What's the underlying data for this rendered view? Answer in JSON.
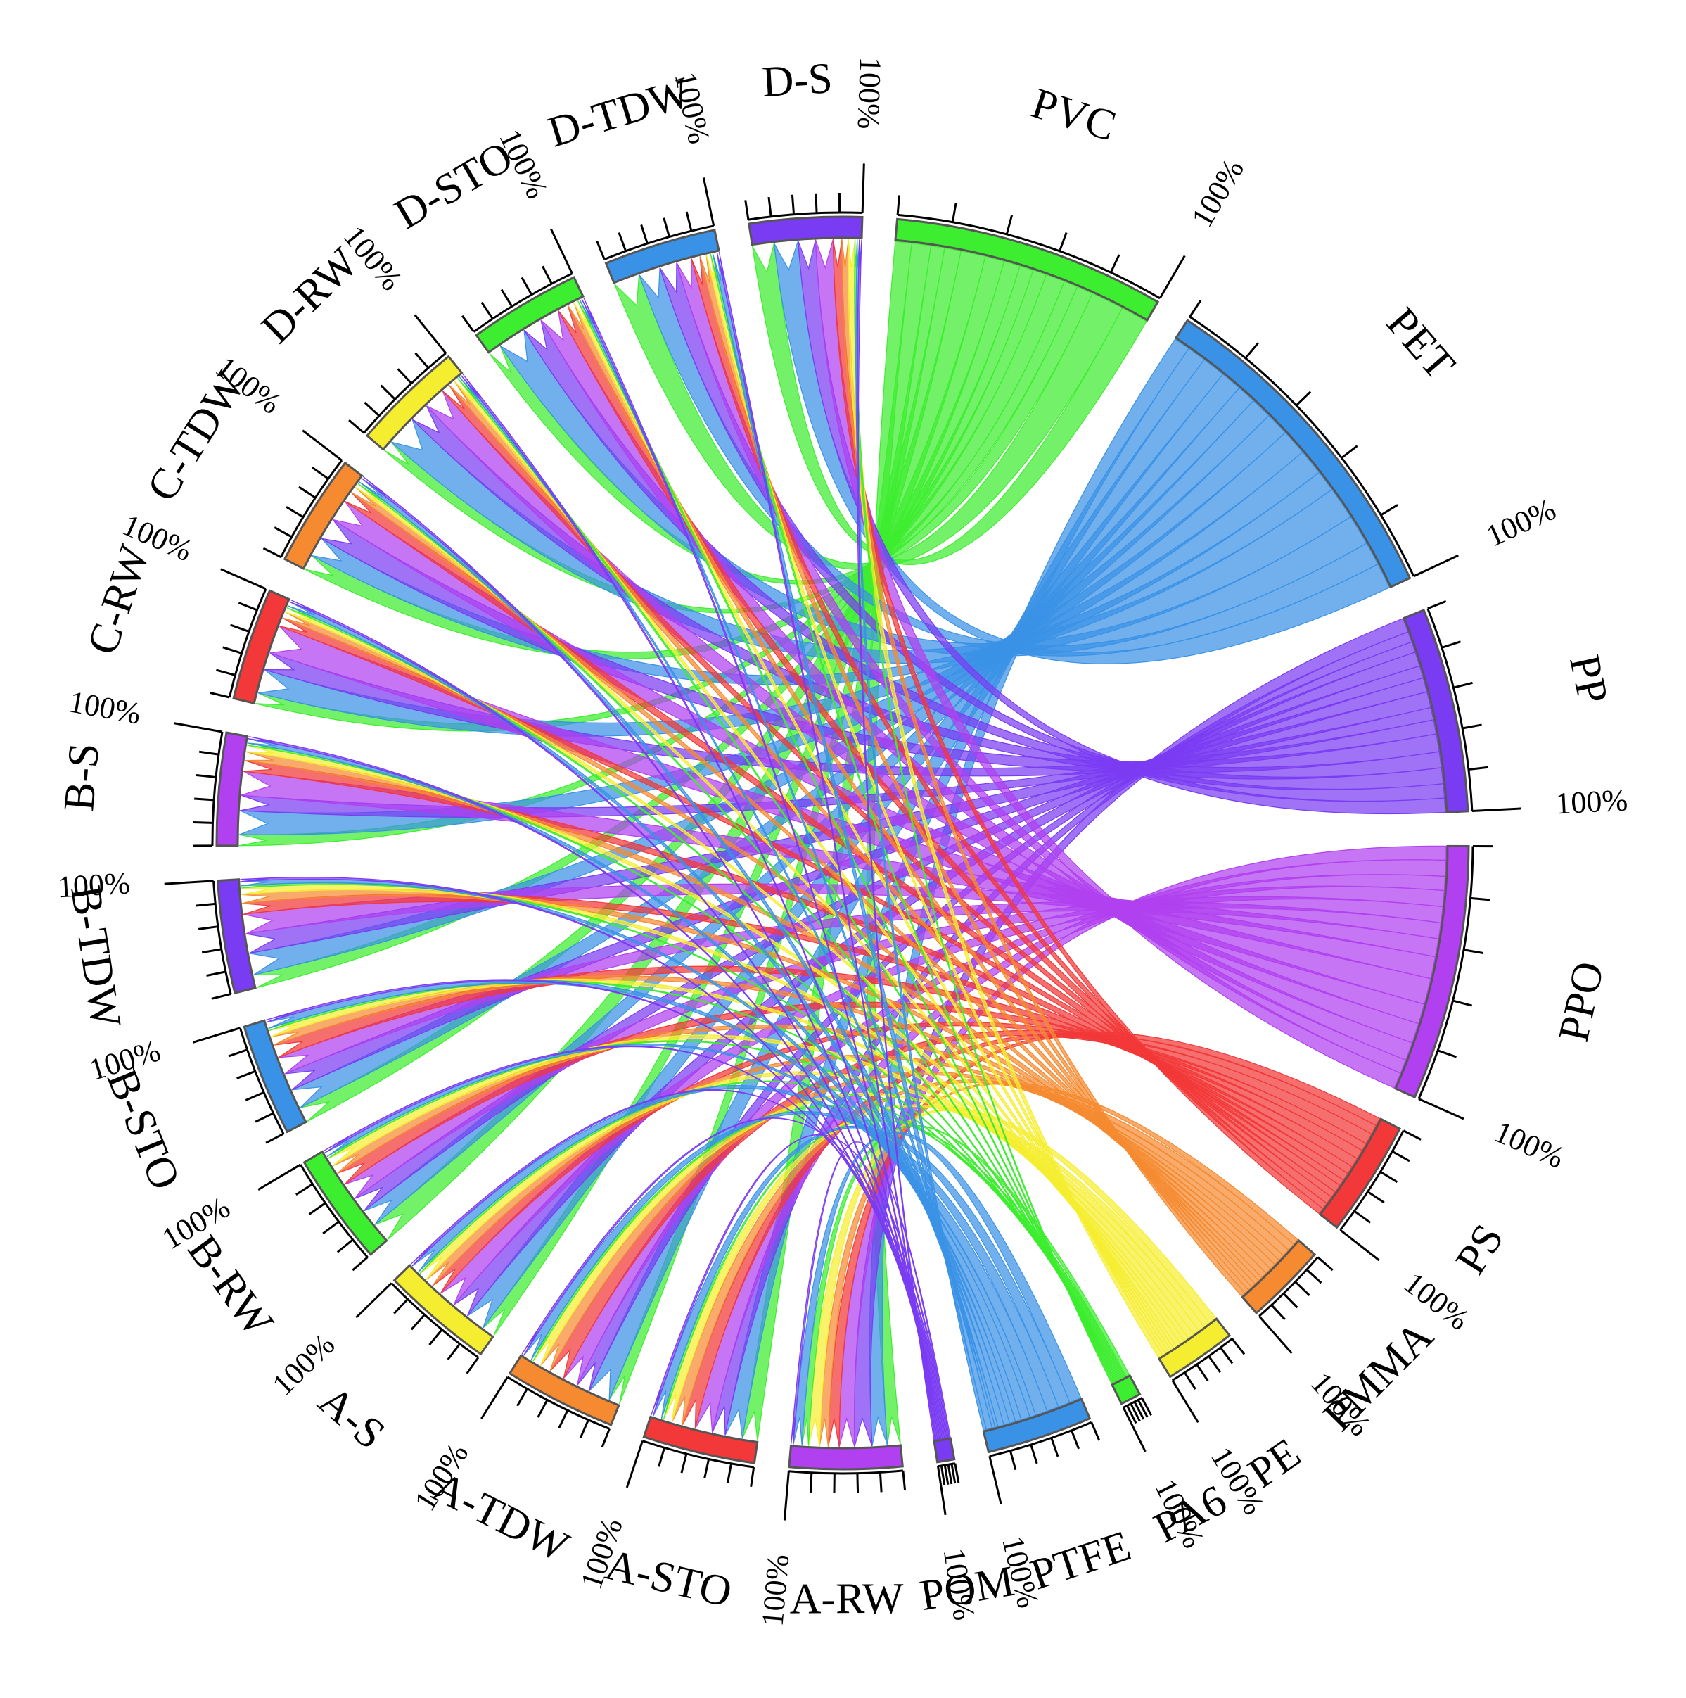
{
  "chart_data": {
    "type": "chord",
    "percent_label": "100%",
    "segments": [
      {
        "name": "PVC",
        "color": "#3ded2f",
        "value": 8.0
      },
      {
        "name": "PET",
        "color": "#3a92e6",
        "value": 10.0
      },
      {
        "name": "PP",
        "color": "#7a3cf2",
        "value": 6.0
      },
      {
        "name": "PPO",
        "color": "#b040f0",
        "value": 7.5
      },
      {
        "name": "PS",
        "color": "#f23838",
        "value": 3.4
      },
      {
        "name": "PMMA",
        "color": "#f58a30",
        "value": 2.4
      },
      {
        "name": "PE",
        "color": "#f5ee30",
        "value": 2.1
      },
      {
        "name": "PA6",
        "color": "#3ded2f",
        "value": 0.6
      },
      {
        "name": "PTFE",
        "color": "#3a92e6",
        "value": 3.1
      },
      {
        "name": "POM",
        "color": "#7a3cf2",
        "value": 0.5
      },
      {
        "name": "A-RW",
        "color": "#b040f0",
        "value": 3.3
      },
      {
        "name": "A-STO",
        "color": "#f23838",
        "value": 3.3
      },
      {
        "name": "A-TDW",
        "color": "#f58a30",
        "value": 3.3
      },
      {
        "name": "A-S",
        "color": "#f5ee30",
        "value": 3.3
      },
      {
        "name": "B-RW",
        "color": "#3ded2f",
        "value": 3.3
      },
      {
        "name": "B-STO",
        "color": "#3a92e6",
        "value": 3.3
      },
      {
        "name": "B-TDW",
        "color": "#7a3cf2",
        "value": 3.3
      },
      {
        "name": "B-S",
        "color": "#b040f0",
        "value": 3.3
      },
      {
        "name": "C-RW",
        "color": "#f23838",
        "value": 3.3
      },
      {
        "name": "C-TDW",
        "color": "#f58a30",
        "value": 3.3
      },
      {
        "name": "D-RW",
        "color": "#f5ee30",
        "value": 3.3
      },
      {
        "name": "D-STO",
        "color": "#3ded2f",
        "value": 3.3
      },
      {
        "name": "D-TDW",
        "color": "#3a92e6",
        "value": 3.3
      },
      {
        "name": "D-S",
        "color": "#7a3cf2",
        "value": 3.3
      }
    ],
    "polymers": [
      "PVC",
      "PET",
      "PP",
      "PPO",
      "PS",
      "PMMA",
      "PE",
      "PA6",
      "PTFE",
      "POM"
    ],
    "samples": [
      "A-RW",
      "A-STO",
      "A-TDW",
      "A-S",
      "B-RW",
      "B-STO",
      "B-TDW",
      "B-S",
      "C-RW",
      "C-TDW",
      "D-RW",
      "D-STO",
      "D-TDW",
      "D-S"
    ],
    "flows": {
      "A-RW": [
        12,
        14,
        16,
        14,
        10,
        8,
        10,
        6,
        8,
        2
      ],
      "A-STO": [
        14,
        16,
        12,
        16,
        12,
        10,
        8,
        2,
        8,
        2
      ],
      "A-TDW": [
        10,
        20,
        12,
        14,
        14,
        10,
        8,
        2,
        8,
        2
      ],
      "A-S": [
        12,
        18,
        16,
        16,
        10,
        8,
        8,
        2,
        8,
        2
      ],
      "B-RW": [
        18,
        16,
        14,
        16,
        12,
        8,
        8,
        2,
        4,
        2
      ],
      "B-STO": [
        14,
        18,
        16,
        16,
        12,
        8,
        6,
        2,
        6,
        2
      ],
      "B-TDW": [
        12,
        20,
        18,
        18,
        10,
        8,
        6,
        2,
        4,
        2
      ],
      "B-S": [
        10,
        22,
        14,
        22,
        10,
        8,
        6,
        2,
        4,
        2
      ],
      "C-RW": [
        10,
        22,
        16,
        26,
        8,
        6,
        4,
        2,
        4,
        2
      ],
      "C-TDW": [
        14,
        18,
        20,
        20,
        10,
        6,
        4,
        2,
        4,
        2
      ],
      "D-RW": [
        10,
        28,
        18,
        20,
        8,
        6,
        4,
        2,
        2,
        2
      ],
      "D-STO": [
        12,
        26,
        18,
        18,
        10,
        6,
        4,
        2,
        2,
        2
      ],
      "D-TDW": [
        24,
        20,
        16,
        14,
        8,
        6,
        4,
        2,
        4,
        2
      ],
      "D-S": [
        20,
        22,
        16,
        16,
        8,
        6,
        6,
        2,
        2,
        2
      ]
    }
  }
}
